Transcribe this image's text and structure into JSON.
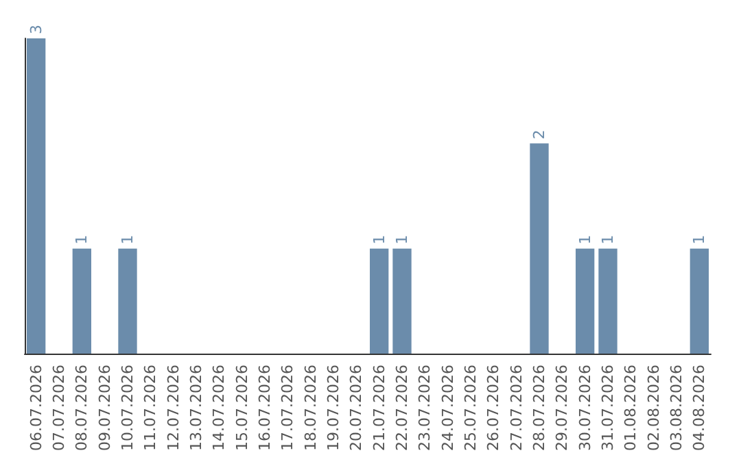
{
  "chart_data": {
    "type": "bar",
    "categories": [
      "06.07.2026",
      "07.07.2026",
      "08.07.2026",
      "09.07.2026",
      "10.07.2026",
      "11.07.2026",
      "12.07.2026",
      "13.07.2026",
      "14.07.2026",
      "15.07.2026",
      "16.07.2026",
      "17.07.2026",
      "18.07.2026",
      "19.07.2026",
      "20.07.2026",
      "21.07.2026",
      "22.07.2026",
      "23.07.2026",
      "24.07.2026",
      "25.07.2026",
      "26.07.2026",
      "27.07.2026",
      "28.07.2026",
      "29.07.2026",
      "30.07.2026",
      "31.07.2026",
      "01.08.2026",
      "02.08.2026",
      "03.08.2026",
      "04.08.2026"
    ],
    "values": [
      3,
      0,
      1,
      0,
      1,
      0,
      0,
      0,
      0,
      0,
      0,
      0,
      0,
      0,
      0,
      1,
      1,
      0,
      0,
      0,
      0,
      0,
      2,
      0,
      1,
      1,
      0,
      0,
      0,
      1
    ],
    "value_labels": [
      "3",
      null,
      "1",
      null,
      "1",
      null,
      null,
      null,
      null,
      null,
      null,
      null,
      null,
      null,
      null,
      "1",
      "1",
      null,
      null,
      null,
      null,
      null,
      "2",
      null,
      "1",
      "1",
      null,
      null,
      null,
      "1"
    ],
    "color": "#6b8cab",
    "grid": false
  }
}
